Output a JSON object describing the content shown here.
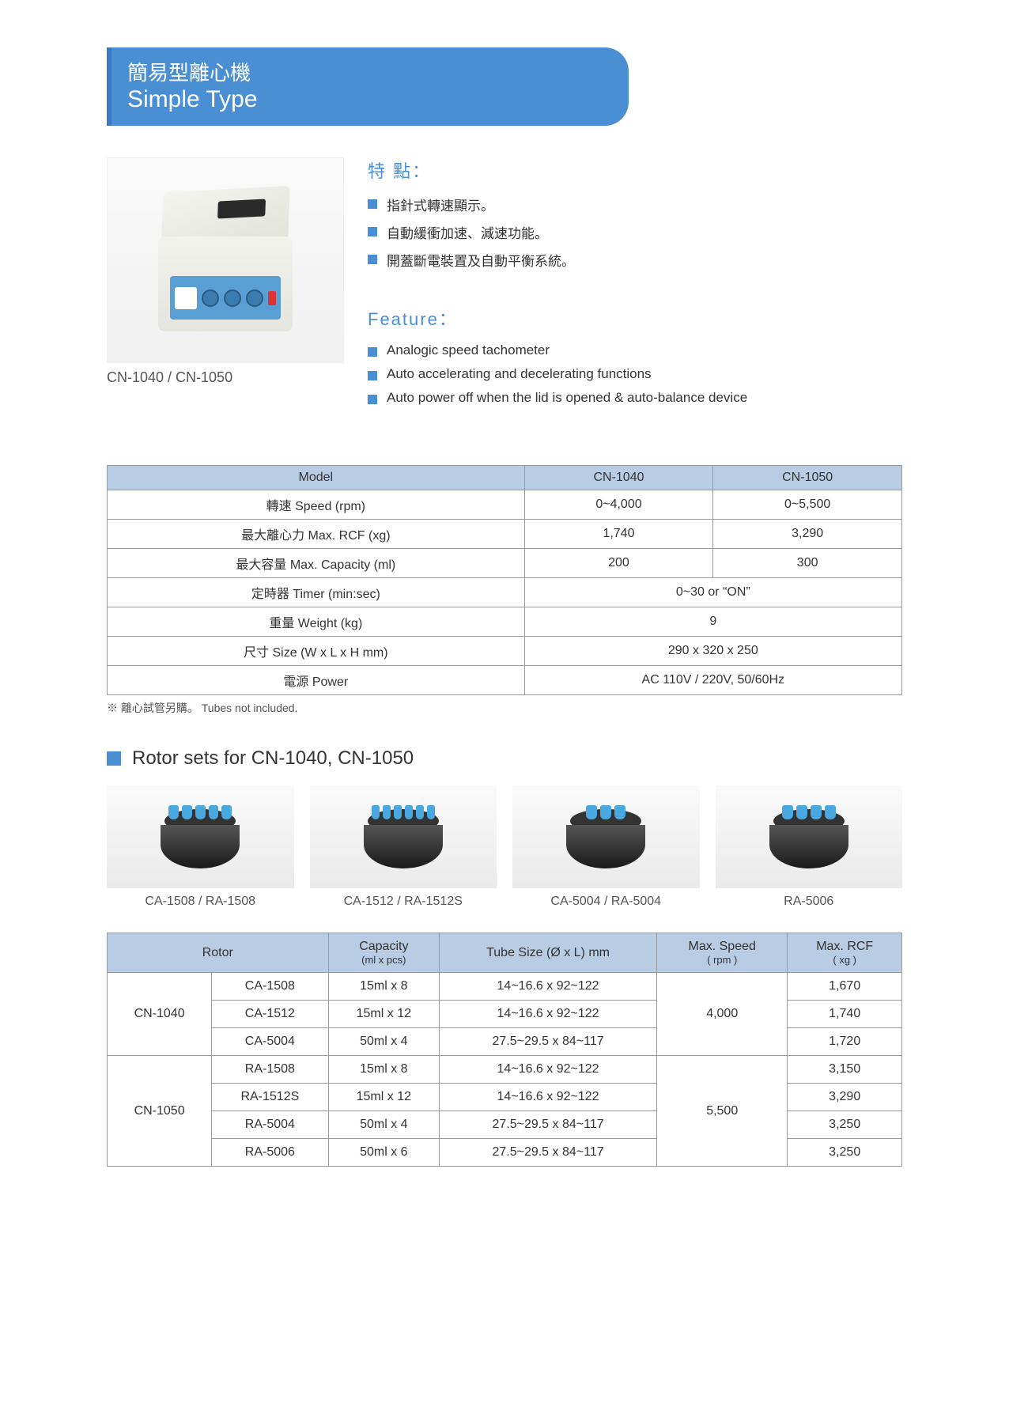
{
  "banner": {
    "cn": "簡易型離心機",
    "en": "Simple Type"
  },
  "product_image_label": "CN-1040 / CN-1050",
  "features_cn": {
    "heading": "特 點：",
    "items": [
      "指針式轉速顯示。",
      "自動緩衝加速、減速功能。",
      "開蓋斷電裝置及自動平衡系統。"
    ]
  },
  "features_en": {
    "heading": "Feature：",
    "items": [
      "Analogic speed tachometer",
      "Auto accelerating and decelerating functions",
      "Auto power off when the lid is opened & auto-balance device"
    ]
  },
  "spec_table": {
    "header_bg": "#b8cce4",
    "border_color": "#999999",
    "columns": [
      "Model",
      "CN-1040",
      "CN-1050"
    ],
    "rows": [
      {
        "label": "轉速 Speed (rpm)",
        "cells": [
          "0~4,000",
          "0~5,500"
        ]
      },
      {
        "label": "最大離心力 Max. RCF (xg)",
        "cells": [
          "1,740",
          "3,290"
        ]
      },
      {
        "label": "最大容量 Max. Capacity (ml)",
        "cells": [
          "200",
          "300"
        ]
      },
      {
        "label": "定時器 Timer (min:sec)",
        "span": "0~30 or  “ON”"
      },
      {
        "label": "重量 Weight (kg)",
        "span": "9"
      },
      {
        "label": "尺寸 Size (W x L x H mm)",
        "span": "290 x 320 x 250"
      },
      {
        "label": "電源 Power",
        "span": "AC 110V / 220V, 50/60Hz"
      }
    ]
  },
  "note": "※ 離心試管另購。 Tubes not included.",
  "rotor_section_title": "Rotor sets for CN-1040, CN-1050",
  "rotor_images": [
    {
      "label": "CA-1508 / RA-1508",
      "tubes": 5
    },
    {
      "label": "CA-1512 / RA-1512S",
      "tubes": 6
    },
    {
      "label": "CA-5004 / RA-5004",
      "tubes": 3
    },
    {
      "label": "RA-5006",
      "tubes": 4
    }
  ],
  "rotor_table": {
    "headers": [
      {
        "main": "Rotor",
        "colspan": 2
      },
      {
        "main": "Capacity",
        "sub": "(ml x pcs)"
      },
      {
        "main": "Tube Size (Ø x L) mm"
      },
      {
        "main": "Max. Speed",
        "sub": "( rpm )"
      },
      {
        "main": "Max. RCF",
        "sub": "( xg )"
      }
    ],
    "groups": [
      {
        "model": "CN-1040",
        "speed": "4,000",
        "rows": [
          {
            "rotor": "CA-1508",
            "cap": "15ml x 8",
            "tube": "14~16.6 x 92~122",
            "rcf": "1,670"
          },
          {
            "rotor": "CA-1512",
            "cap": "15ml x 12",
            "tube": "14~16.6 x 92~122",
            "rcf": "1,740"
          },
          {
            "rotor": "CA-5004",
            "cap": "50ml x 4",
            "tube": "27.5~29.5 x 84~117",
            "rcf": "1,720"
          }
        ]
      },
      {
        "model": "CN-1050",
        "speed": "5,500",
        "rows": [
          {
            "rotor": "RA-1508",
            "cap": "15ml x 8",
            "tube": "14~16.6 x 92~122",
            "rcf": "3,150"
          },
          {
            "rotor": "RA-1512S",
            "cap": "15ml x 12",
            "tube": "14~16.6 x 92~122",
            "rcf": "3,290"
          },
          {
            "rotor": "RA-5004",
            "cap": "50ml x 4",
            "tube": "27.5~29.5 x 84~117",
            "rcf": "3,250"
          },
          {
            "rotor": "RA-5006",
            "cap": "50ml x 6",
            "tube": "27.5~29.5 x 84~117",
            "rcf": "3,250"
          }
        ]
      }
    ]
  },
  "colors": {
    "brand_blue": "#4a8fd3",
    "header_bg": "#b8cce4",
    "border": "#999999",
    "text": "#333333",
    "tube": "#4aa8e0"
  }
}
